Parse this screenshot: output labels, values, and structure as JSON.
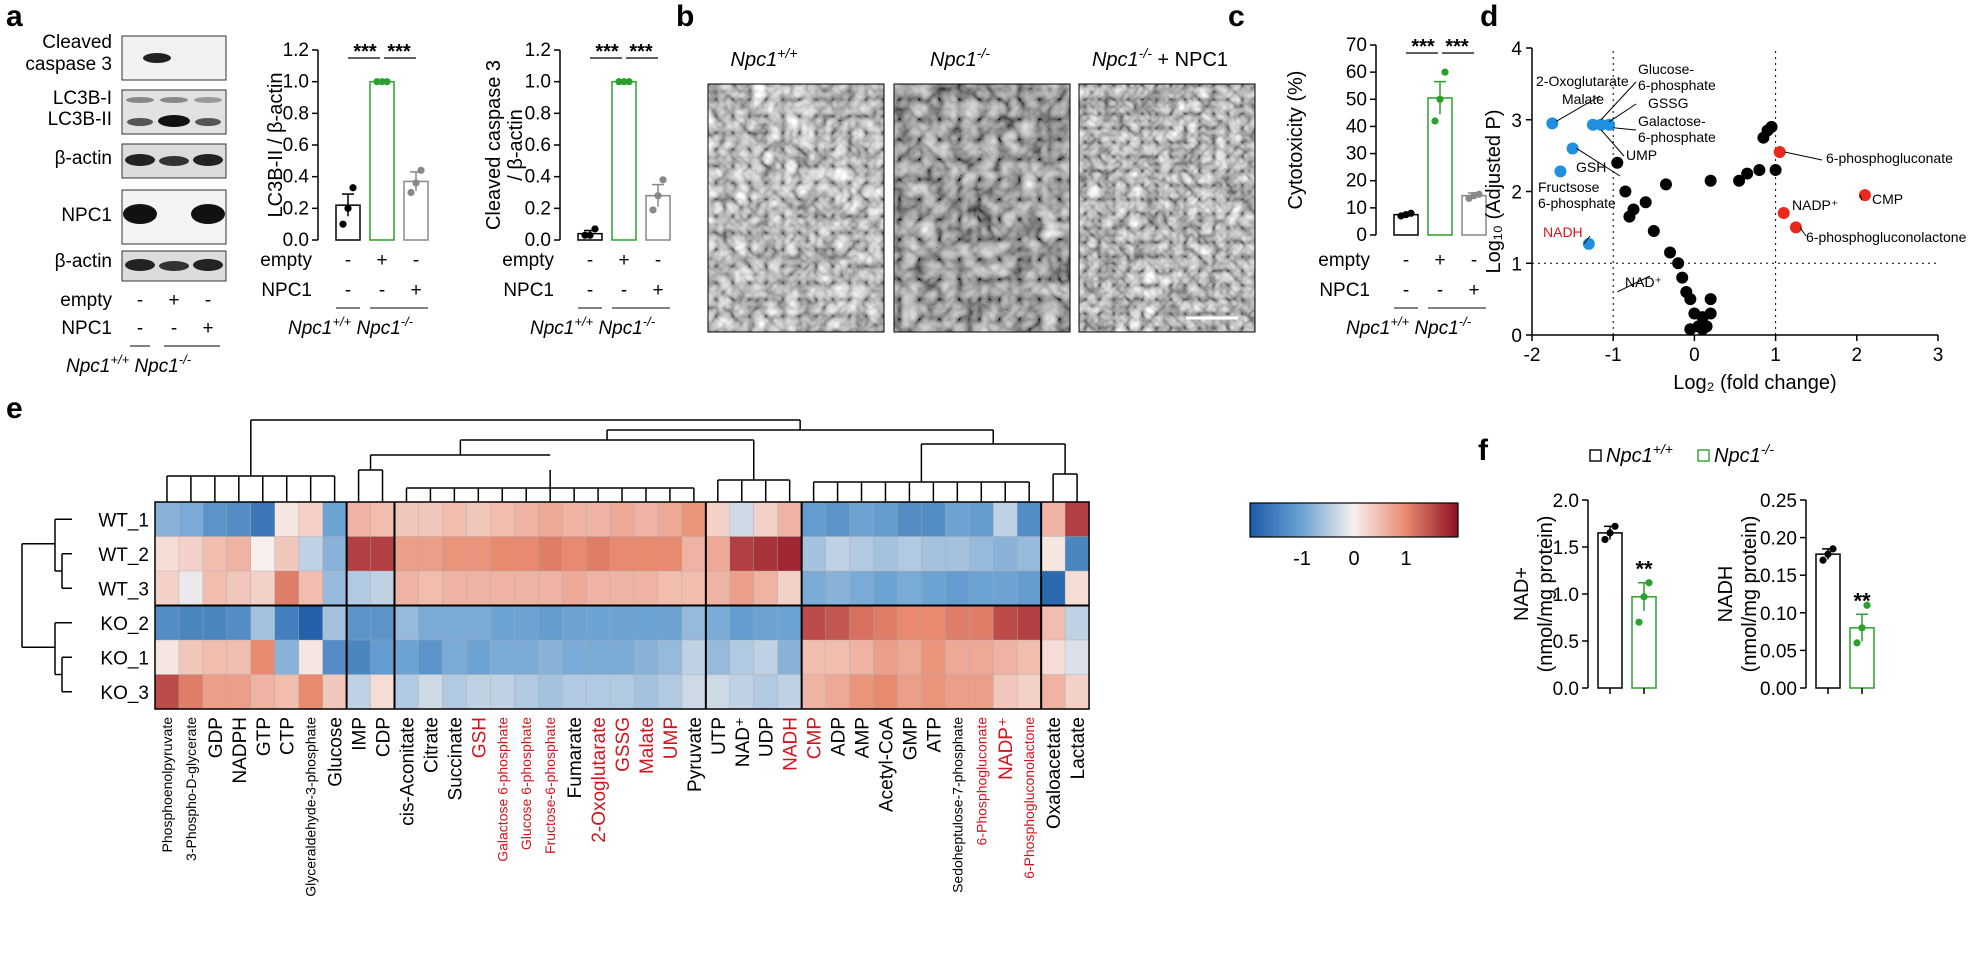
{
  "panels": {
    "a": "a",
    "b": "b",
    "c": "c",
    "d": "d",
    "e": "e",
    "f": "f"
  },
  "colors": {
    "npc1_null": "#2ca02c",
    "low_metab": "#1f8fe0",
    "high_metab": "#e8291c",
    "red_label": "#d4141c"
  },
  "genotypes": {
    "wt_plain": "Npc1",
    "wt_sup": "+/+",
    "ko_plain": "Npc1",
    "ko_sup": "-/-",
    "rescue_suffix": " + NPC1"
  },
  "conditions": {
    "empty": "empty",
    "npc1": "NPC1",
    "plus": "+",
    "minus": "-"
  },
  "blot": {
    "labels": [
      "Cleaved",
      "caspase 3",
      "LC3B-I",
      "LC3B-II",
      "β-actin",
      "NPC1",
      "β-actin"
    ]
  },
  "panel_a_lc3": {
    "ylabel": "LC3B-II / β-actin",
    "yticks": [
      "0.0",
      "0.2",
      "0.4",
      "0.6",
      "0.8",
      "1.0",
      "1.2"
    ],
    "ymax": 1.2,
    "values": [
      0.22,
      1.0,
      0.37
    ],
    "errors": [
      0.07,
      0.0,
      0.06
    ],
    "points": [
      [
        0.1,
        0.2,
        0.33
      ],
      [
        1.0,
        1.0,
        1.0
      ],
      [
        0.3,
        0.36,
        0.44
      ]
    ],
    "sig": [
      "***",
      "***"
    ]
  },
  "panel_a_casp": {
    "ylabel_1": "Cleaved caspase 3",
    "ylabel_2": "/ β-actin",
    "yticks": [
      "0.0",
      "0.2",
      "0.4",
      "0.6",
      "0.8",
      "1.0",
      "1.2"
    ],
    "ymax": 1.2,
    "values": [
      0.04,
      1.0,
      0.28
    ],
    "errors": [
      0.02,
      0.0,
      0.07
    ],
    "points": [
      [
        0.03,
        0.03,
        0.07
      ],
      [
        1.0,
        1.0,
        1.0
      ],
      [
        0.19,
        0.28,
        0.38
      ]
    ],
    "sig": [
      "***",
      "***"
    ]
  },
  "panel_c": {
    "ylabel": "Cytotoxicity (%)",
    "yticks": [
      "0",
      "10",
      "20",
      "30",
      "40",
      "50",
      "60",
      "70"
    ],
    "ymax": 70,
    "values": [
      7.5,
      50.5,
      14.5
    ],
    "errors": [
      0.5,
      6,
      1
    ],
    "points": [
      [
        7,
        7.5,
        8
      ],
      [
        42,
        50,
        60
      ],
      [
        13.5,
        14.5,
        15
      ]
    ],
    "sig": [
      "***",
      "***"
    ]
  },
  "panel_d": {
    "xlabel": "Log₂ (fold change)",
    "ylabel": "Log₁₀ (Adjusted P)",
    "xticks": [
      "-2",
      "-1",
      "0",
      "1",
      "2",
      "3"
    ],
    "yticks": [
      "0",
      "1",
      "2",
      "3",
      "4"
    ],
    "xlim": [
      -2,
      3
    ],
    "ylim": [
      0,
      4
    ],
    "blue_points": [
      [
        -1.75,
        2.95
      ],
      [
        -1.5,
        2.6
      ],
      [
        -1.65,
        2.28
      ],
      [
        -1.25,
        2.93
      ],
      [
        -1.15,
        2.93
      ],
      [
        -1.05,
        2.93
      ],
      [
        -1.3,
        1.27
      ]
    ],
    "red_points": [
      [
        1.05,
        2.55
      ],
      [
        1.1,
        1.7
      ],
      [
        1.25,
        1.5
      ],
      [
        2.1,
        1.95
      ]
    ],
    "black_points": [
      [
        0.9,
        2.85
      ],
      [
        0.95,
        2.9
      ],
      [
        0.85,
        2.75
      ],
      [
        -0.95,
        2.4
      ],
      [
        -0.85,
        2.0
      ],
      [
        -0.75,
        1.75
      ],
      [
        -0.6,
        1.85
      ],
      [
        0.8,
        2.3
      ],
      [
        1.0,
        2.3
      ],
      [
        0.65,
        2.25
      ],
      [
        0.55,
        2.15
      ],
      [
        0.2,
        2.15
      ],
      [
        -0.35,
        2.1
      ],
      [
        -0.8,
        1.65
      ],
      [
        -0.5,
        1.45
      ],
      [
        -0.3,
        1.15
      ],
      [
        -0.2,
        1.0
      ],
      [
        -0.15,
        0.8
      ],
      [
        -0.1,
        0.6
      ],
      [
        -0.05,
        0.5
      ],
      [
        0.0,
        0.3
      ],
      [
        0.1,
        0.25
      ],
      [
        0.2,
        0.3
      ],
      [
        0.05,
        0.12
      ],
      [
        0.1,
        0.08
      ],
      [
        0.15,
        0.12
      ],
      [
        -0.05,
        0.08
      ],
      [
        0.2,
        0.5
      ]
    ],
    "labels": {
      "oxo": "2-Oxoglutarate",
      "malate": "Malate",
      "g6p_1": "Glucose-",
      "g6p_2": "6-phosphate",
      "gssg": "GSSG",
      "gal_1": "Galactose-",
      "gal_2": "6-phosphate",
      "ump": "UMP",
      "gsh": "GSH",
      "f6p_1": "Fructsose",
      "f6p_2": "6-phosphate",
      "nadh": "NADH",
      "nad": "NAD⁺",
      "pgluc": "6-phosphogluconate",
      "nadp": "NADP⁺",
      "cmp": "CMP",
      "pglucl": "6-phosphogluconolactone"
    }
  },
  "heatmap": {
    "rows": [
      "WT_1",
      "WT_2",
      "WT_3",
      "KO_2",
      "KO_1",
      "KO_3"
    ],
    "columns": [
      {
        "label": "Phosphoenolpyruvate",
        "red": false,
        "small": true
      },
      {
        "label": "3-Phospho-D-glycerate",
        "red": false,
        "small": true
      },
      {
        "label": "GDP",
        "red": false,
        "small": false
      },
      {
        "label": "NADPH",
        "red": false,
        "small": false
      },
      {
        "label": "GTP",
        "red": false,
        "small": false
      },
      {
        "label": "CTP",
        "red": false,
        "small": false
      },
      {
        "label": "Glyceraldehyde-3-phosphate",
        "red": false,
        "small": true
      },
      {
        "label": "Glucose",
        "red": false,
        "small": false
      },
      {
        "label": "IMP",
        "red": false,
        "small": false
      },
      {
        "label": "CDP",
        "red": false,
        "small": false
      },
      {
        "label": "cis-Aconitate",
        "red": false,
        "small": false
      },
      {
        "label": "Citrate",
        "red": false,
        "small": false
      },
      {
        "label": "Succinate",
        "red": false,
        "small": false
      },
      {
        "label": "GSH",
        "red": true,
        "small": false
      },
      {
        "label": "Galactose 6-phosphate",
        "red": true,
        "small": true
      },
      {
        "label": "Glucose 6-phosphate",
        "red": true,
        "small": true
      },
      {
        "label": "Fructose-6-phosphate",
        "red": true,
        "small": true
      },
      {
        "label": "Fumarate",
        "red": false,
        "small": false
      },
      {
        "label": "2-Oxoglutarate",
        "red": true,
        "small": false
      },
      {
        "label": "GSSG",
        "red": true,
        "small": false
      },
      {
        "label": "Malate",
        "red": true,
        "small": false
      },
      {
        "label": "UMP",
        "red": true,
        "small": false
      },
      {
        "label": "Pyruvate",
        "red": false,
        "small": false
      },
      {
        "label": "UTP",
        "red": false,
        "small": false
      },
      {
        "label": "NAD⁺",
        "red": false,
        "small": false
      },
      {
        "label": "UDP",
        "red": false,
        "small": false
      },
      {
        "label": "NADH",
        "red": true,
        "small": false
      },
      {
        "label": "CMP",
        "red": true,
        "small": false
      },
      {
        "label": "ADP",
        "red": false,
        "small": false
      },
      {
        "label": "AMP",
        "red": false,
        "small": false
      },
      {
        "label": "Acetyl-CoA",
        "red": false,
        "small": false
      },
      {
        "label": "GMP",
        "red": false,
        "small": false
      },
      {
        "label": "ATP",
        "red": false,
        "small": false
      },
      {
        "label": "Sedoheptulose-7-phosphate",
        "red": false,
        "small": true
      },
      {
        "label": "6-Phosphogluconate",
        "red": true,
        "small": true
      },
      {
        "label": "NADP⁺",
        "red": true,
        "small": false
      },
      {
        "label": "6-Phosphogluconolactone",
        "red": true,
        "small": true
      },
      {
        "label": "Oxaloacetate",
        "red": false,
        "small": false
      },
      {
        "label": "Lactate",
        "red": false,
        "small": false
      }
    ],
    "values": [
      [
        -0.8,
        -0.9,
        -1.2,
        -1.3,
        -1.6,
        0.1,
        0.3,
        -1.0,
        0.6,
        0.5,
        0.4,
        0.4,
        0.5,
        0.4,
        0.5,
        0.6,
        0.7,
        0.6,
        0.6,
        0.7,
        0.6,
        0.7,
        0.9,
        0.3,
        -0.3,
        0.3,
        0.6,
        -1.1,
        -1.2,
        -1.0,
        -1.1,
        -1.3,
        -1.3,
        -1.0,
        -1.1,
        -0.4,
        -1.3,
        0.6,
        1.6
      ],
      [
        0.2,
        0.3,
        0.5,
        0.6,
        0.0,
        0.4,
        -0.4,
        -0.8,
        1.6,
        1.6,
        0.8,
        0.8,
        0.9,
        0.9,
        1.0,
        1.0,
        1.1,
        1.0,
        1.1,
        1.0,
        1.0,
        1.0,
        0.6,
        0.7,
        1.6,
        1.7,
        1.8,
        -0.6,
        -0.4,
        -0.5,
        -0.6,
        -0.5,
        -0.6,
        -0.6,
        -0.7,
        -0.8,
        -0.7,
        0.1,
        -1.4
      ],
      [
        0.3,
        -0.1,
        0.5,
        0.4,
        0.3,
        1.1,
        0.5,
        -0.7,
        -0.5,
        -0.4,
        0.6,
        0.5,
        0.6,
        0.6,
        0.6,
        0.6,
        0.6,
        0.7,
        0.6,
        0.6,
        0.6,
        0.5,
        0.5,
        0.6,
        0.8,
        0.6,
        0.3,
        -0.9,
        -0.8,
        -0.9,
        -1.0,
        -0.9,
        -1.0,
        -1.1,
        -1.0,
        -1.0,
        -1.1,
        -1.8,
        0.2
      ],
      [
        -1.3,
        -1.4,
        -1.4,
        -1.3,
        -0.6,
        -1.5,
        -1.9,
        -0.6,
        -1.2,
        -1.2,
        -0.7,
        -0.9,
        -0.9,
        -0.9,
        -1.0,
        -1.0,
        -1.1,
        -1.0,
        -1.0,
        -1.0,
        -1.0,
        -1.0,
        -0.7,
        -0.9,
        -1.1,
        -1.0,
        -1.0,
        1.5,
        1.4,
        1.2,
        1.1,
        1.0,
        1.0,
        1.1,
        1.1,
        1.5,
        1.6,
        0.5,
        -0.4
      ],
      [
        0.1,
        0.4,
        0.5,
        0.5,
        1.0,
        -0.8,
        0.1,
        -1.3,
        -1.4,
        -1.1,
        -1.0,
        -1.2,
        -0.9,
        -1.0,
        -0.9,
        -0.9,
        -0.8,
        -0.9,
        -0.9,
        -0.9,
        -0.8,
        -0.7,
        -0.4,
        -0.7,
        -0.5,
        -0.4,
        -0.8,
        0.5,
        0.5,
        0.6,
        0.8,
        0.7,
        0.9,
        0.7,
        0.7,
        0.6,
        0.5,
        0.2,
        -0.2
      ],
      [
        1.5,
        1.1,
        0.8,
        0.8,
        0.6,
        0.5,
        1.0,
        0.4,
        -0.4,
        0.2,
        -0.5,
        -0.3,
        -0.5,
        -0.4,
        -0.4,
        -0.5,
        -0.6,
        -0.5,
        -0.5,
        -0.5,
        -0.6,
        -0.5,
        -0.3,
        -0.3,
        -0.4,
        -0.5,
        -0.4,
        0.6,
        0.7,
        0.9,
        1.0,
        0.8,
        0.9,
        0.8,
        0.8,
        0.4,
        0.3,
        0.6,
        0.3
      ]
    ],
    "scale_ticks": [
      "-1",
      "0",
      "1"
    ],
    "scale_range": [
      -2,
      2
    ]
  },
  "panel_f": {
    "legend_wt": "Npc1",
    "legend_wt_sup": "+/+",
    "legend_ko": "Npc1",
    "legend_ko_sup": "-/-",
    "nad": {
      "ylabel_1": "NAD+",
      "ylabel_2": "(nmol/mg protein)",
      "yticks": [
        "0.0",
        "0.5",
        "1.0",
        "1.5",
        "2.0"
      ],
      "ymax": 2.0,
      "values": [
        1.65,
        0.97
      ],
      "errors": [
        0.07,
        0.15
      ],
      "points": [
        [
          1.58,
          1.65,
          1.72
        ],
        [
          0.7,
          0.97,
          1.12
        ]
      ],
      "sig": "**"
    },
    "nadh": {
      "ylabel_1": "NADH",
      "ylabel_2": "(nmol/mg protein)",
      "yticks": [
        "0.00",
        "0.05",
        "0.10",
        "0.15",
        "0.20",
        "0.25"
      ],
      "ymax": 0.25,
      "values": [
        0.178,
        0.08
      ],
      "errors": [
        0.007,
        0.018
      ],
      "points": [
        [
          0.17,
          0.178,
          0.185
        ],
        [
          0.06,
          0.08,
          0.11
        ]
      ],
      "sig": "**"
    }
  }
}
